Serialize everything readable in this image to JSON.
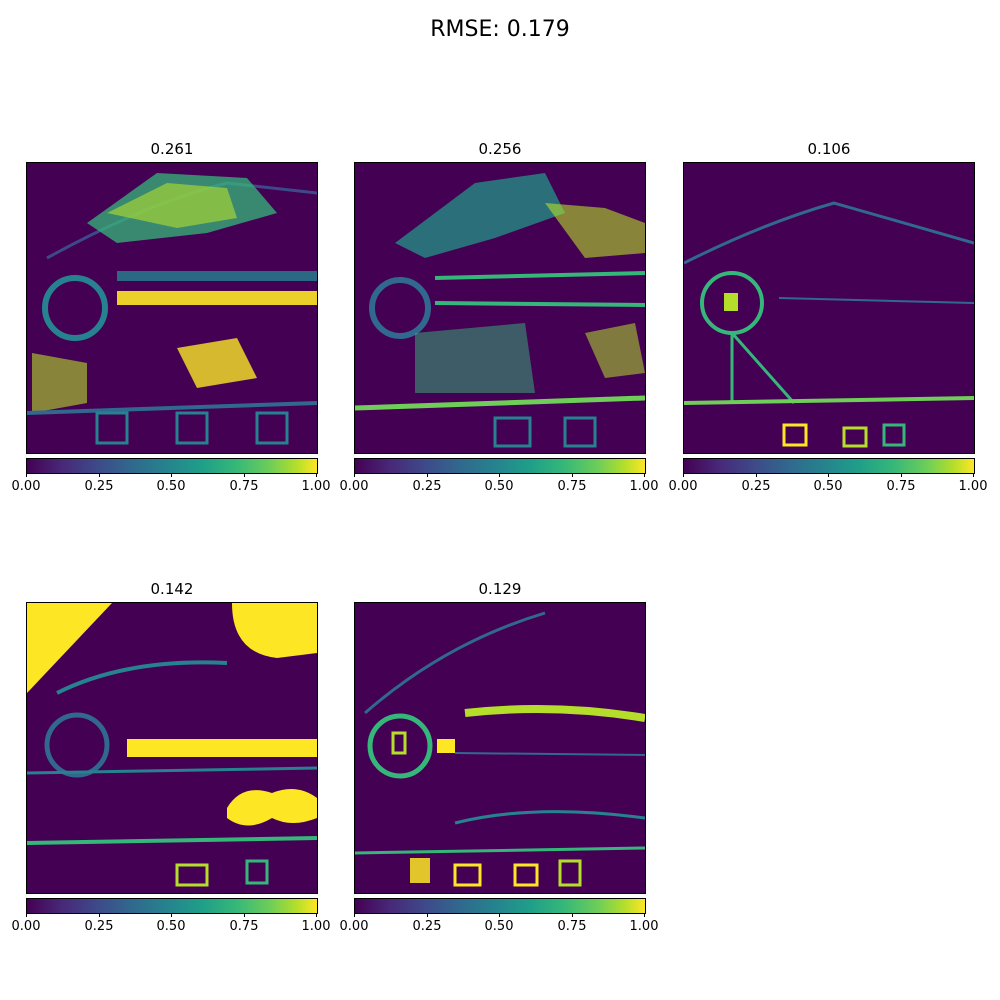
{
  "figure": {
    "title": "RMSE: 0.179"
  },
  "panels": [
    {
      "title": "0.261"
    },
    {
      "title": "0.256"
    },
    {
      "title": "0.106"
    },
    {
      "title": "0.142"
    },
    {
      "title": "0.129"
    }
  ],
  "colorbar": {
    "colormap": "viridis",
    "range": [
      0,
      1
    ],
    "ticks": [
      "0.00",
      "0.25",
      "0.50",
      "0.75",
      "1.00"
    ]
  },
  "chart_data": [
    {
      "type": "heatmap",
      "title": "0.261",
      "colorbar_range": [
        0,
        1
      ],
      "colorbar_ticks": [
        0,
        0.25,
        0.5,
        0.75,
        1
      ]
    },
    {
      "type": "heatmap",
      "title": "0.256",
      "colorbar_range": [
        0,
        1
      ],
      "colorbar_ticks": [
        0,
        0.25,
        0.5,
        0.75,
        1
      ]
    },
    {
      "type": "heatmap",
      "title": "0.106",
      "colorbar_range": [
        0,
        1
      ],
      "colorbar_ticks": [
        0,
        0.25,
        0.5,
        0.75,
        1
      ]
    },
    {
      "type": "heatmap",
      "title": "0.142",
      "colorbar_range": [
        0,
        1
      ],
      "colorbar_ticks": [
        0,
        0.25,
        0.5,
        0.75,
        1
      ]
    },
    {
      "type": "heatmap",
      "title": "0.129",
      "colorbar_range": [
        0,
        1
      ],
      "colorbar_ticks": [
        0,
        0.25,
        0.5,
        0.75,
        1
      ]
    }
  ]
}
